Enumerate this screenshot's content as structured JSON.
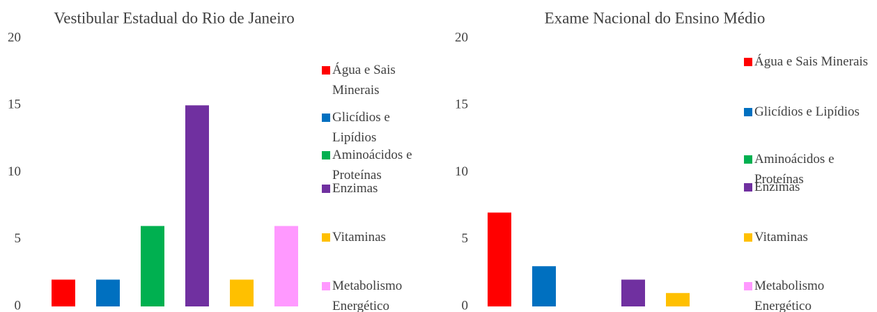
{
  "chart_data": [
    {
      "type": "bar",
      "title": "Vestibular Estadual do Rio de Janeiro",
      "categories": [
        "Água e Sais Minerais",
        "Glicídios e Lipídios",
        "Aminoácidos e Proteínas",
        "Enzimas",
        "Vitaminas",
        "Metabolismo Energético"
      ],
      "values": [
        2,
        2,
        6,
        15,
        2,
        6
      ],
      "colors": [
        "#ff0000",
        "#0070c0",
        "#00b050",
        "#7030a0",
        "#ffc000",
        "#ff99ff"
      ],
      "ylim": [
        0,
        20
      ],
      "yticks": [
        0,
        5,
        10,
        15,
        20
      ],
      "grid": false,
      "legend": "right"
    },
    {
      "type": "bar",
      "title": "Exame Nacional do Ensino Médio",
      "categories": [
        "Água e Sais Minerais",
        "Glicídios e Lipídios",
        "Aminoácidos e Proteínas",
        "Enzimas",
        "Vitaminas",
        "Metabolismo Energético"
      ],
      "values": [
        7,
        3,
        0,
        2,
        1,
        0
      ],
      "colors": [
        "#ff0000",
        "#0070c0",
        "#00b050",
        "#7030a0",
        "#ffc000",
        "#ff99ff"
      ],
      "ylim": [
        0,
        20
      ],
      "yticks": [
        0,
        5,
        10,
        15,
        20
      ],
      "grid": false,
      "legend": "right"
    }
  ]
}
